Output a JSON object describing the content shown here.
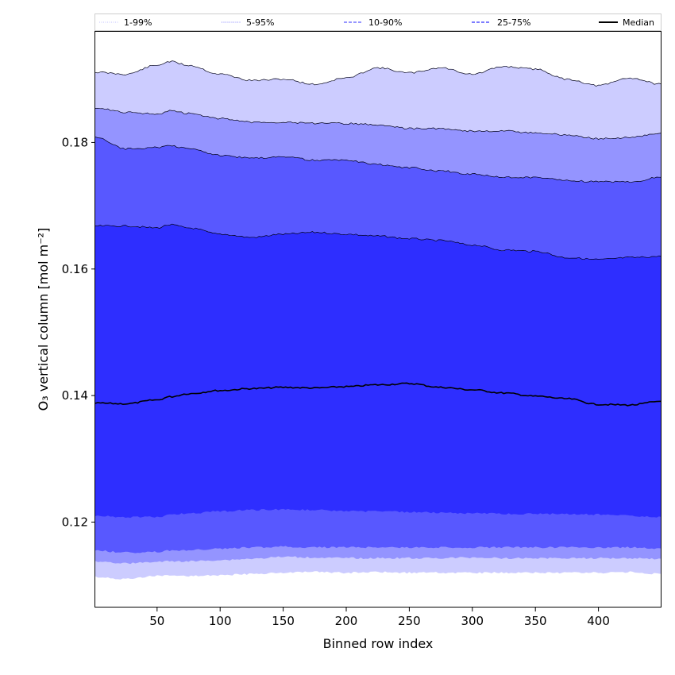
{
  "chart_data": {
    "type": "area",
    "title": "",
    "xlabel": "Binned row index",
    "ylabel": "O₃ vertical column [mol m⁻²]",
    "xlim": [
      1,
      450
    ],
    "ylim": [
      0.1065,
      0.1975
    ],
    "xticks": [
      50,
      100,
      150,
      200,
      250,
      300,
      350,
      400
    ],
    "yticks": [
      0.12,
      0.14,
      0.16,
      0.18
    ],
    "ytick_labels": [
      "0.12",
      "0.14",
      "0.16",
      "0.18"
    ],
    "grid": false,
    "legend_position": "top (above plot)",
    "x": [
      1,
      25,
      50,
      60,
      75,
      100,
      125,
      150,
      175,
      200,
      225,
      250,
      275,
      300,
      325,
      350,
      375,
      400,
      425,
      450
    ],
    "bands": [
      {
        "name": "1-99%",
        "color": "#ccccff",
        "upper": [
          0.1911,
          0.1908,
          0.1922,
          0.1928,
          0.1922,
          0.1908,
          0.1898,
          0.19,
          0.1892,
          0.1902,
          0.1918,
          0.191,
          0.1918,
          0.1908,
          0.192,
          0.1916,
          0.19,
          0.189,
          0.1902,
          0.1892
        ],
        "lower": [
          0.1113,
          0.111,
          0.1115,
          0.1115,
          0.1115,
          0.1116,
          0.1118,
          0.112,
          0.1121,
          0.112,
          0.1121,
          0.112,
          0.112,
          0.112,
          0.112,
          0.112,
          0.112,
          0.112,
          0.1121,
          0.1118
        ]
      },
      {
        "name": "5-95%",
        "color": "#9494ff",
        "upper": [
          0.1855,
          0.1848,
          0.1845,
          0.185,
          0.1846,
          0.1838,
          0.1832,
          0.1832,
          0.183,
          0.183,
          0.1828,
          0.1822,
          0.1822,
          0.1818,
          0.1818,
          0.1815,
          0.1812,
          0.1806,
          0.1808,
          0.1815
        ],
        "lower": [
          0.1138,
          0.1135,
          0.1137,
          0.1138,
          0.1138,
          0.114,
          0.1142,
          0.1145,
          0.1144,
          0.1143,
          0.1143,
          0.1143,
          0.1143,
          0.1144,
          0.1143,
          0.1143,
          0.1143,
          0.1143,
          0.1143,
          0.1142
        ]
      },
      {
        "name": "10-90%",
        "color": "#5858ff",
        "upper": [
          0.1808,
          0.179,
          0.1792,
          0.1795,
          0.179,
          0.178,
          0.1775,
          0.1778,
          0.1772,
          0.1772,
          0.1765,
          0.176,
          0.1755,
          0.175,
          0.1745,
          0.1745,
          0.174,
          0.1738,
          0.1738,
          0.1745
        ],
        "lower": [
          0.1155,
          0.1152,
          0.1153,
          0.1155,
          0.1156,
          0.1158,
          0.116,
          0.1161,
          0.116,
          0.116,
          0.116,
          0.116,
          0.116,
          0.116,
          0.116,
          0.116,
          0.116,
          0.116,
          0.116,
          0.1158
        ]
      },
      {
        "name": "25-75%",
        "color": "#2e2eff",
        "upper": [
          0.1668,
          0.1668,
          0.1665,
          0.167,
          0.1665,
          0.1655,
          0.165,
          0.1655,
          0.1658,
          0.1655,
          0.1652,
          0.1648,
          0.1645,
          0.1638,
          0.163,
          0.1628,
          0.1618,
          0.1615,
          0.1618,
          0.162
        ],
        "lower": [
          0.121,
          0.1208,
          0.1208,
          0.1211,
          0.1214,
          0.1217,
          0.1219,
          0.122,
          0.1219,
          0.1217,
          0.1217,
          0.1216,
          0.1215,
          0.1214,
          0.1213,
          0.1213,
          0.1213,
          0.1212,
          0.121,
          0.1208
        ]
      }
    ],
    "series": [
      {
        "name": "Median",
        "color": "#000000",
        "values": [
          0.1388,
          0.1387,
          0.1393,
          0.1398,
          0.1403,
          0.1408,
          0.1411,
          0.1413,
          0.1412,
          0.1414,
          0.1417,
          0.1419,
          0.1413,
          0.1409,
          0.1404,
          0.1399,
          0.1395,
          0.1386,
          0.1385,
          0.1391
        ]
      }
    ],
    "legend": [
      {
        "label": "1-99%",
        "style": "dotted",
        "color": "#ccccff"
      },
      {
        "label": "5-95%",
        "style": "dotted",
        "color": "#9494ff"
      },
      {
        "label": "10-90%",
        "style": "dashed",
        "color": "#5858ff"
      },
      {
        "label": "25-75%",
        "style": "dashed",
        "color": "#2e2eff"
      },
      {
        "label": "Median",
        "style": "solid",
        "color": "#000000"
      }
    ]
  }
}
